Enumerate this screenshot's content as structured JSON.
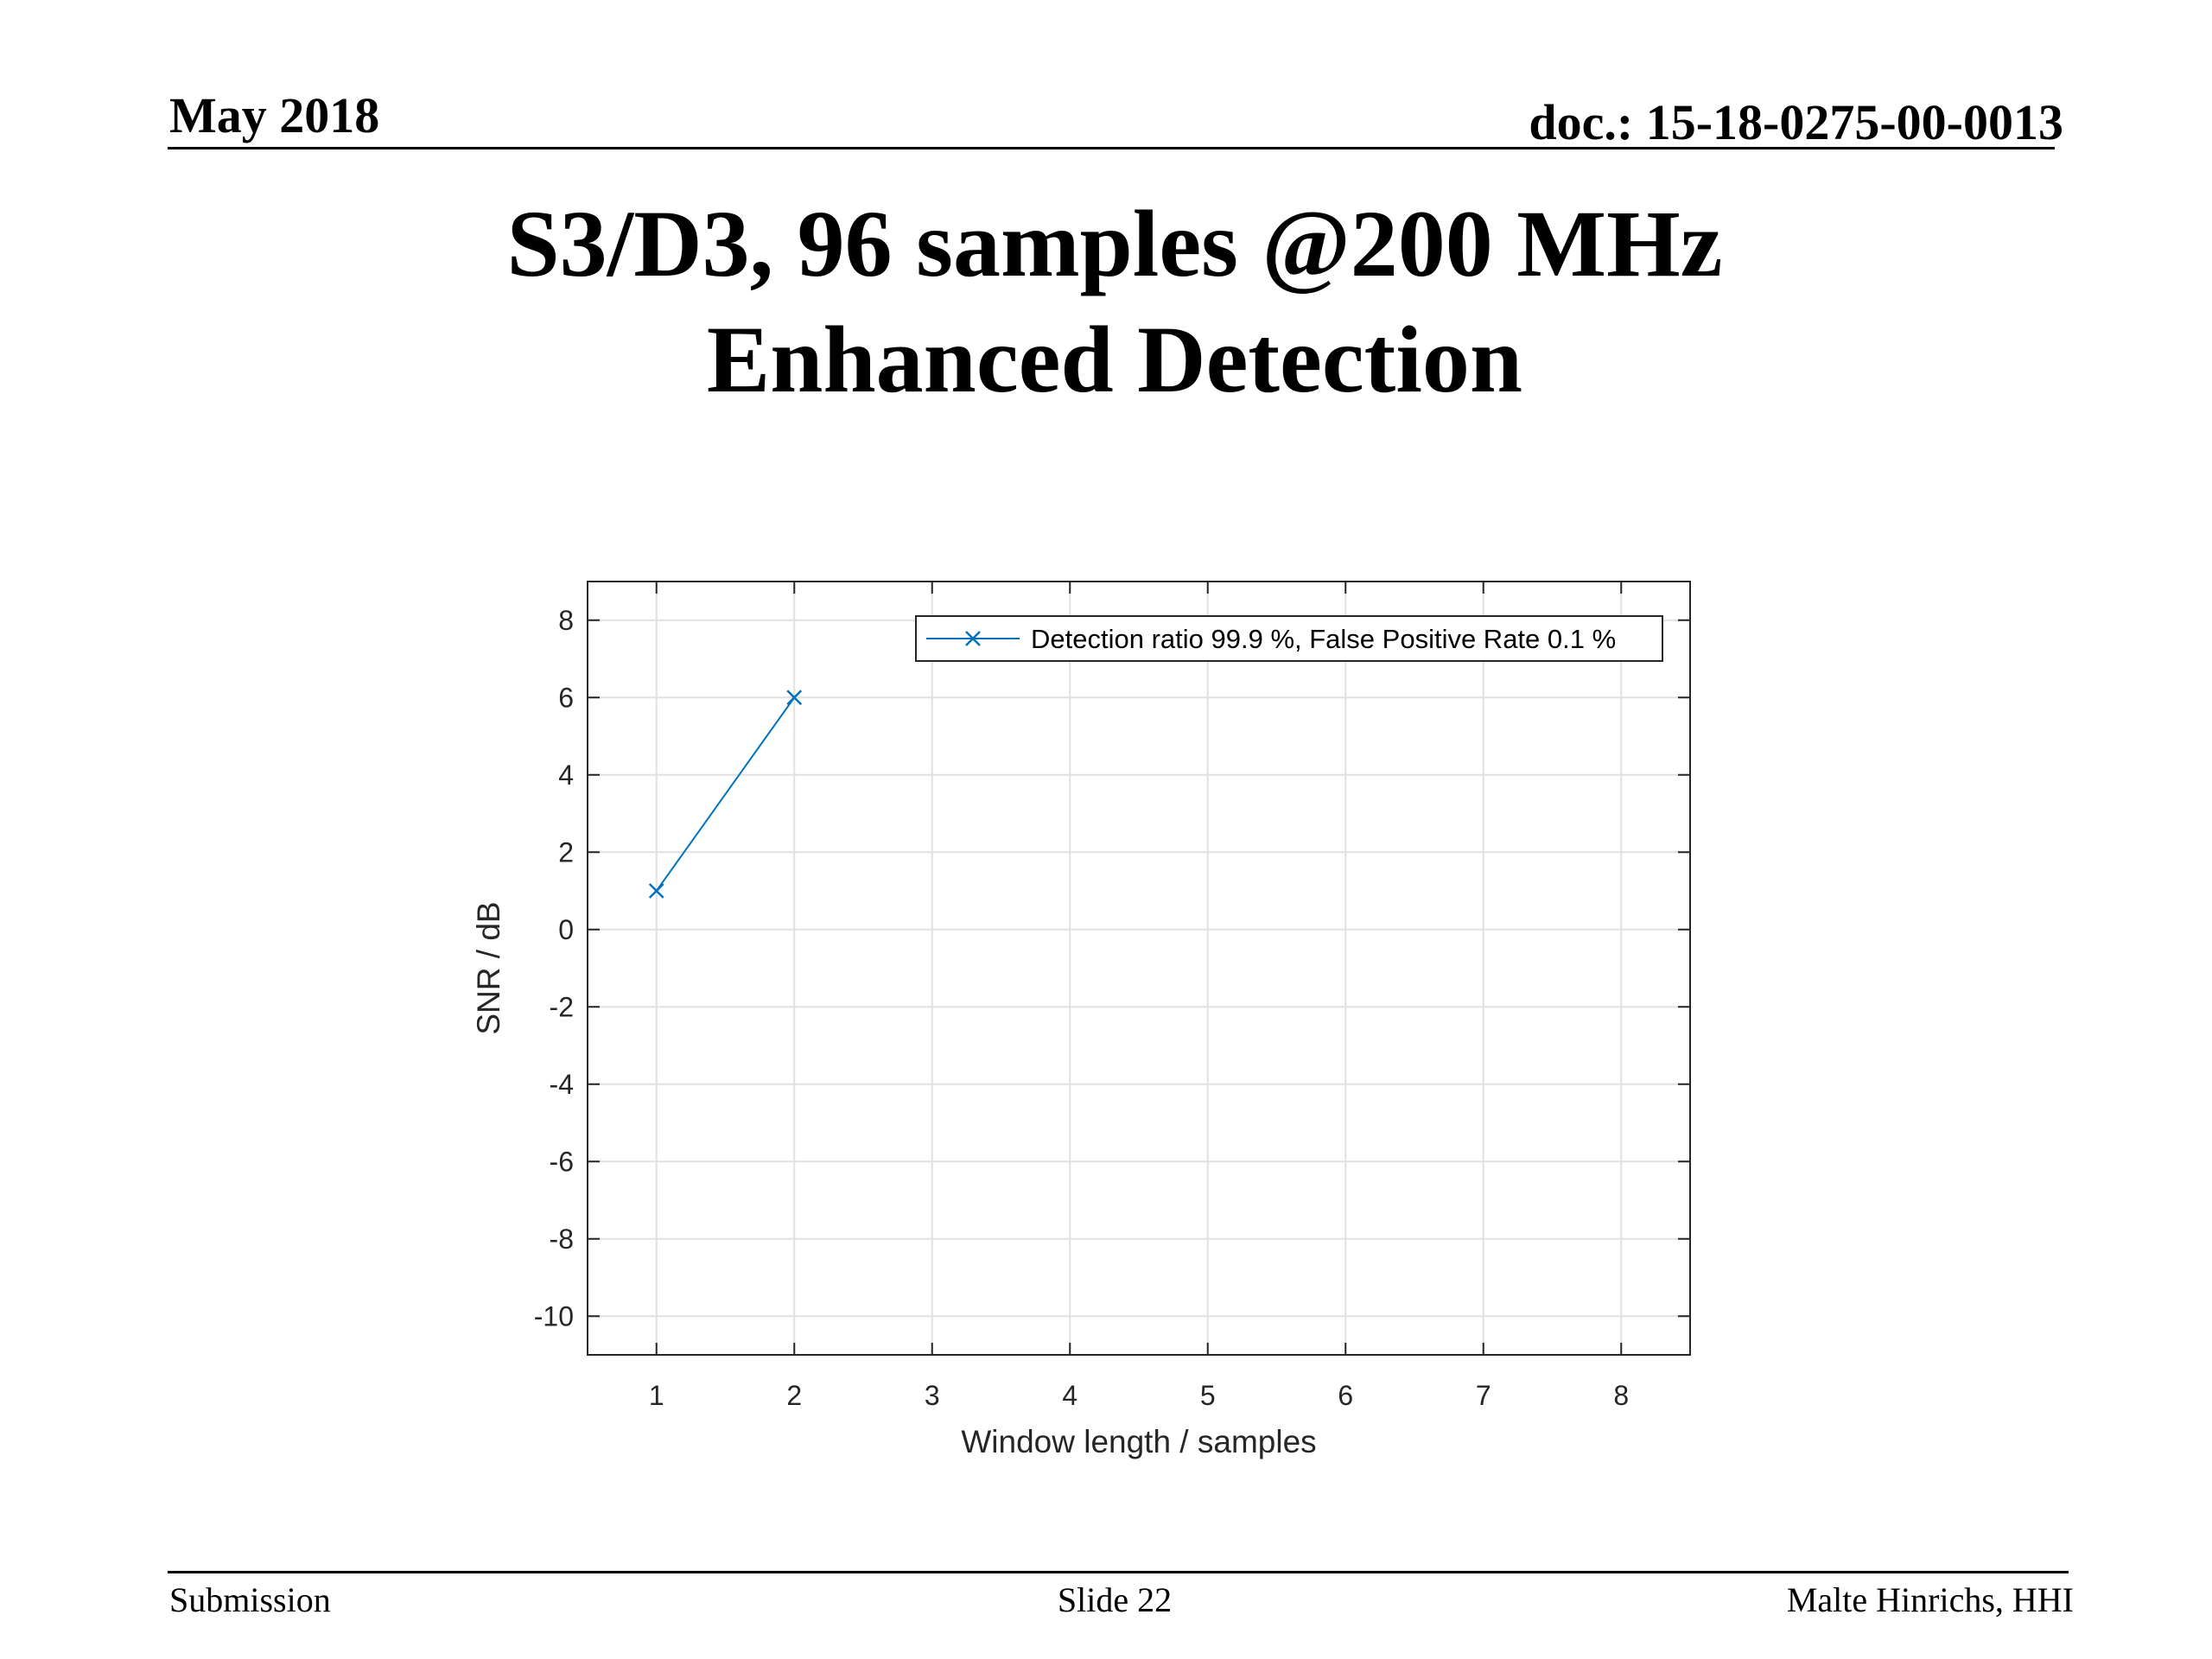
{
  "header": {
    "date": "May 2018",
    "doc": "doc.: 15-18-0275-00-0013"
  },
  "slide": {
    "title_line1": "S3/D3, 96 samples @200 MHz",
    "title_line2": "Enhanced Detection"
  },
  "chart_data": {
    "type": "line",
    "title": "",
    "xlabel": "Window length / samples",
    "ylabel": "SNR / dB",
    "xlim": [
      0.5,
      8.5
    ],
    "ylim": [
      -11,
      9
    ],
    "xticks": [
      1,
      2,
      3,
      4,
      5,
      6,
      7,
      8
    ],
    "yticks": [
      -10,
      -8,
      -6,
      -4,
      -2,
      0,
      2,
      4,
      6,
      8
    ],
    "grid": true,
    "legend_position": "top-right",
    "series": [
      {
        "name": "Detection ratio 99.9 %, False Positive Rate 0.1 %",
        "color": "#0072bd",
        "marker": "x",
        "x": [
          1,
          2
        ],
        "y": [
          1,
          6
        ]
      }
    ]
  },
  "footer": {
    "left": "Submission",
    "center": "Slide 22",
    "right": "Malte Hinrichs, HHI"
  }
}
